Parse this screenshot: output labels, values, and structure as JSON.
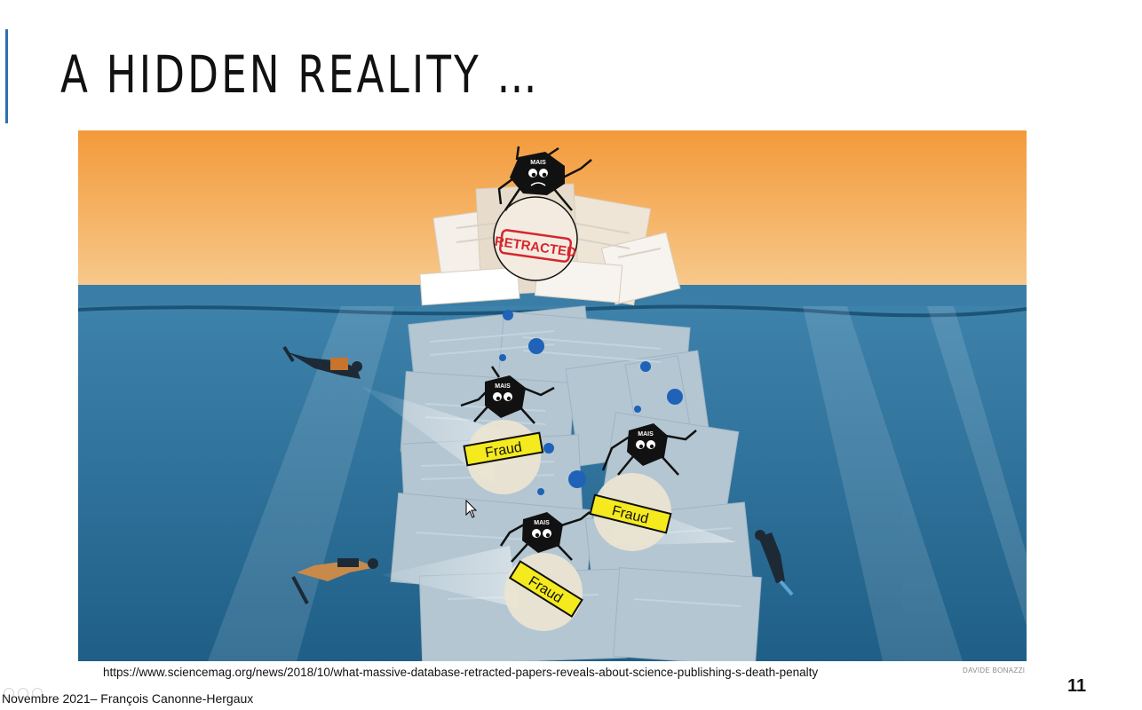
{
  "slide": {
    "title": "A HIDDEN REALITY …",
    "source_url": "https://www.sciencemag.org/news/2018/10/what-massive-database-retracted-papers-reveals-about-science-publishing-s-death-penalty",
    "footer": "Novembre 2021– François Canonne-Hergaux",
    "page_number": "11"
  },
  "illustration": {
    "credit": "DAVIDE BONAZZI",
    "stamp_label": "RETRACTED",
    "mais_label": "MAIS",
    "fraud_labels": [
      "Fraud",
      "Fraud",
      "Fraud"
    ],
    "colors": {
      "sky_top": "#f39a3a",
      "sky_bottom": "#f7c98c",
      "sea_top": "#3f84ad",
      "sea_bottom": "#1f5f87",
      "stamp_red": "#d6262e",
      "fraud_yellow": "#f4ea1e"
    }
  }
}
